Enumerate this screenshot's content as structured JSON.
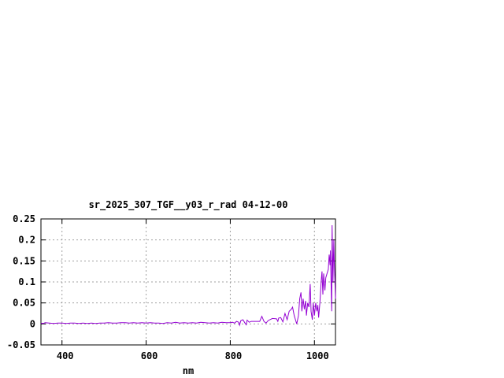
{
  "chart_data": {
    "type": "line",
    "title": "sr_2025_307_TGF__y03_r_rad 04-12-00",
    "xlabel": "nm",
    "ylabel": "",
    "xlim": [
      350,
      1050
    ],
    "ylim": [
      -0.05,
      0.25
    ],
    "xticks": [
      400,
      600,
      800,
      1000
    ],
    "xtick_labels": [
      "400",
      "600",
      "800",
      "1000"
    ],
    "yticks": [
      -0.05,
      0,
      0.05,
      0.1,
      0.15,
      0.2,
      0.25
    ],
    "ytick_labels": [
      "-0.05",
      "0",
      "0.05",
      "0.1",
      "0.15",
      "0.2",
      "0.25"
    ],
    "grid": true,
    "color": "#9400d3",
    "series": [
      {
        "x": [
          350,
          355,
          360,
          370,
          380,
          390,
          400,
          410,
          420,
          430,
          440,
          450,
          460,
          470,
          480,
          490,
          500,
          510,
          520,
          530,
          540,
          550,
          560,
          570,
          580,
          590,
          600,
          610,
          620,
          630,
          640,
          650,
          660,
          670,
          680,
          690,
          700,
          710,
          720,
          730,
          740,
          750,
          760,
          770,
          780,
          790,
          800,
          805,
          810,
          815,
          820,
          822,
          825,
          830,
          835,
          838,
          840,
          845,
          850,
          860,
          870,
          875,
          880,
          885,
          890,
          900,
          910,
          913,
          915,
          920,
          925,
          930,
          935,
          940,
          945,
          948,
          952,
          955,
          958,
          962,
          965,
          968,
          970,
          973,
          976,
          979,
          981,
          984,
          987,
          990,
          992,
          995,
          997,
          1000,
          1003,
          1006,
          1008,
          1010,
          1013,
          1016,
          1018,
          1020,
          1022,
          1025,
          1027,
          1030,
          1033,
          1035,
          1037,
          1038,
          1040,
          1041,
          1042,
          1044,
          1046,
          1047,
          1049,
          1050
        ],
        "y": [
          0.002,
          0.001,
          0.003,
          0.002,
          0.001,
          0.002,
          0.002,
          0.001,
          0.002,
          0.002,
          0.001,
          0.002,
          0.001,
          0.002,
          0.001,
          0.002,
          0.002,
          0.003,
          0.002,
          0.002,
          0.003,
          0.003,
          0.002,
          0.003,
          0.002,
          0.003,
          0.002,
          0.003,
          0.002,
          0.002,
          0.001,
          0.003,
          0.002,
          0.004,
          0.002,
          0.003,
          0.002,
          0.003,
          0.002,
          0.004,
          0.003,
          0.002,
          0.003,
          0.002,
          0.004,
          0.003,
          0.003,
          0.004,
          0.002,
          0.006,
          0.004,
          -0.003,
          0.008,
          0.01,
          0.002,
          -0.002,
          0.009,
          0.004,
          0.006,
          0.006,
          0.006,
          0.018,
          0.006,
          0.002,
          0.008,
          0.013,
          0.012,
          0.006,
          0.014,
          0.015,
          0.005,
          0.025,
          0.01,
          0.03,
          0.035,
          0.04,
          0.02,
          0.01,
          0.0,
          0.02,
          0.06,
          0.075,
          0.03,
          0.06,
          0.035,
          0.055,
          0.02,
          0.05,
          0.04,
          0.095,
          0.03,
          0.01,
          0.05,
          0.02,
          0.05,
          0.03,
          0.045,
          0.015,
          0.05,
          0.1,
          0.125,
          0.07,
          0.12,
          0.08,
          0.11,
          0.12,
          0.13,
          0.165,
          0.14,
          0.175,
          0.07,
          0.03,
          0.235,
          0.1,
          0.2,
          0.15,
          0.09,
          0.06
        ]
      }
    ]
  }
}
